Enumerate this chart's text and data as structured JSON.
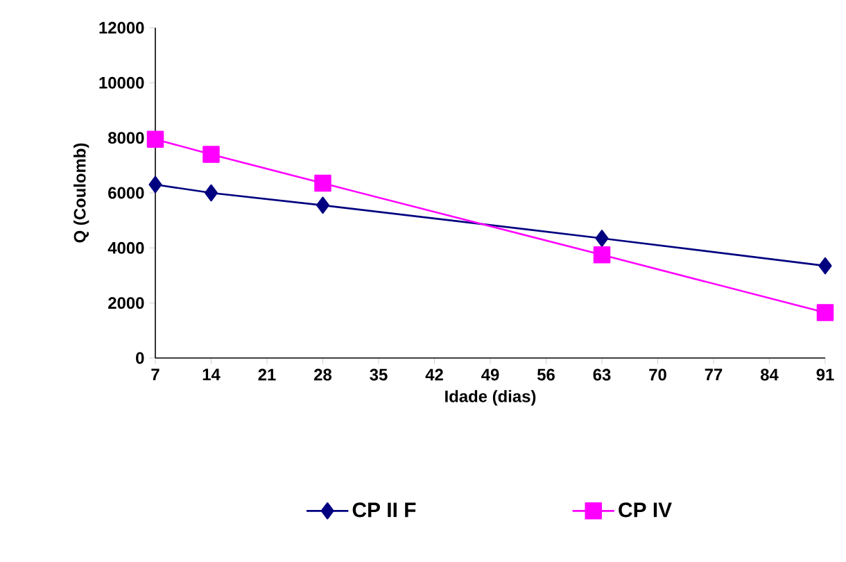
{
  "chart_data": {
    "type": "line",
    "xlabel": "Idade (dias)",
    "ylabel": "Q (Coulomb)",
    "x": [
      7,
      14,
      28,
      63,
      91
    ],
    "series": [
      {
        "name": "CP II F",
        "color": "#000080",
        "marker": "diamond",
        "values": [
          6300,
          6000,
          5550,
          4350,
          3350
        ]
      },
      {
        "name": "CP IV",
        "color": "#ff00ff",
        "marker": "square",
        "values": [
          7950,
          7400,
          6350,
          3750,
          1650
        ]
      }
    ],
    "xlim": [
      7,
      91
    ],
    "xticks": [
      7,
      14,
      21,
      28,
      35,
      42,
      49,
      56,
      63,
      70,
      77,
      84,
      91
    ],
    "ylim": [
      0,
      12000
    ],
    "yticks": [
      0,
      2000,
      4000,
      6000,
      8000,
      10000,
      12000
    ],
    "grid": false,
    "legend": "bottom",
    "line_style": "solid"
  }
}
